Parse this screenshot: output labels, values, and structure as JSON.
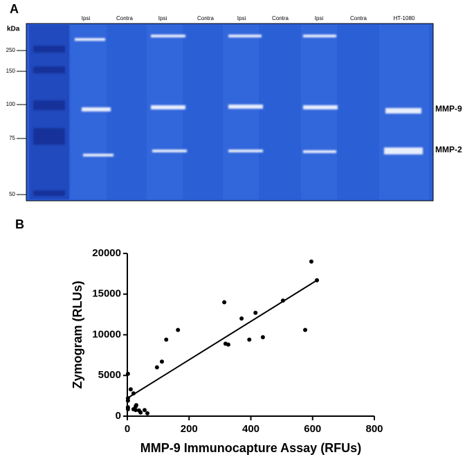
{
  "panel_a": {
    "label": "A",
    "unit": "kDa",
    "markers": [
      "250",
      "150",
      "100",
      "75",
      "50"
    ],
    "lanes": [
      "Ipsi",
      "Contra",
      "Ipsi",
      "Contra",
      "Ipsi",
      "Contra",
      "Ipsi",
      "Contra",
      "HT-1080"
    ],
    "bands": [
      "MMP-9",
      "MMP-2"
    ]
  },
  "panel_b": {
    "label": "B"
  },
  "chart_data": {
    "type": "scatter",
    "x_label": "MMP-9 Immunocapture Assay (RFUs)",
    "y_label": "Zymogram (RLUs)",
    "x": [
      2,
      11,
      20,
      2,
      2,
      2,
      2,
      27,
      29,
      20,
      27,
      38,
      43,
      56,
      65,
      96,
      112,
      126,
      164,
      314,
      318,
      327,
      370,
      395,
      415,
      439,
      504,
      576,
      596,
      614
    ],
    "values": [
      5200,
      3300,
      2800,
      2200,
      1900,
      1100,
      850,
      1200,
      1350,
      850,
      750,
      700,
      450,
      750,
      350,
      6000,
      6700,
      9400,
      10600,
      14000,
      8900,
      8800,
      12000,
      9400,
      12700,
      9700,
      14200,
      10600,
      19000,
      16700
    ],
    "color": "#000000",
    "fit": {
      "x": [
        0,
        614
      ],
      "values": [
        2200,
        16700
      ]
    },
    "xlim": [
      0,
      800
    ],
    "xticks": [
      0,
      200,
      400,
      600,
      800
    ],
    "ylim": [
      0,
      20000
    ],
    "yticks": [
      0,
      5000,
      10000,
      15000,
      20000
    ]
  }
}
